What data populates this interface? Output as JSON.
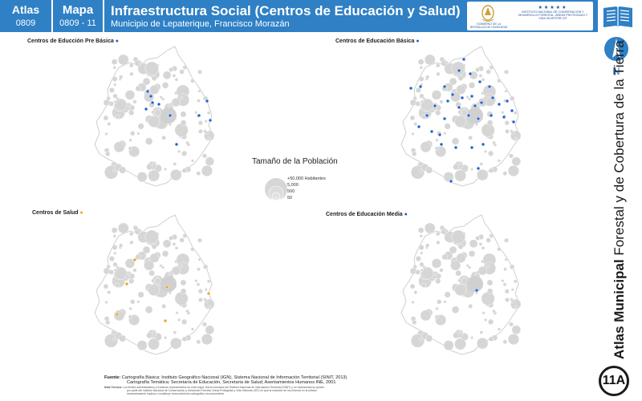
{
  "header": {
    "atlas_label": "Atlas",
    "atlas_code": "0809",
    "mapa_label": "Mapa",
    "mapa_code": "0809 - 11",
    "title": "Infraestructura Social (Centros de Educación y Salud)",
    "subtitle": "Municipio de Lepaterique, Francisco Morazán",
    "logo_left_text": "GOBIERNO DE LA REPÚBLICA DE HONDURAS",
    "logo_right_stars": "★★★★★",
    "logo_right_text": "INSTITUTO NACIONAL DE CONSERVACIÓN Y DESARROLLO FORESTAL, ÁREAS PROTEGIDAS Y VIDA SILVESTRE ICF"
  },
  "sidebar": {
    "north_letter": "N",
    "vertical_bold": "Atlas Municipal",
    "vertical_rest": " Forestal y de Cobertura de la Tierra",
    "badge": "11A"
  },
  "panels": {
    "pre_basica": "Centros de Educción Pre Básica",
    "basica": "Centros de Educación Básica",
    "salud": "Centros de Salud",
    "media": "Centros de Educación Media"
  },
  "legend": {
    "title": "Tamaño de la Población",
    "items": [
      "+50,000 Habitantes",
      "5,000",
      "500",
      "50"
    ]
  },
  "colors": {
    "header": "#2f80c5",
    "blue_dot": "#1f5fd1",
    "orange_dot": "#f2a01e",
    "grey_circle": "#d6d6d6"
  },
  "footer": {
    "fuente_label": "Fuente:",
    "fuente_text": "Cartografía Básica: Instituto Geográfico Nacional (IGN), Sistema Nacional de Información Territorial (SINIT, 2013)",
    "line2": "Cartografía Temática: Secretaría de Educación, Secretaría de Salud; Asentamientos Humanos INE, 2001",
    "nota_label": "Nota Técnica:",
    "nota_text": "Los límites administrativos y fronteras representados en este mapa, fueron tomados del Sistema Nacional de Información Territorial (SINIT) y no representan la opinión",
    "nota_text2": "por parte del Instituto Nacional de Conservación y Desarrollo Forestal, Áreas Protegidas y Vida Silvestre (ICF) en que la inclusión de los mismos en la edición",
    "nota_text3": "necesariamente implica o constituye reconocimiento cartográfico reconocimiento."
  }
}
